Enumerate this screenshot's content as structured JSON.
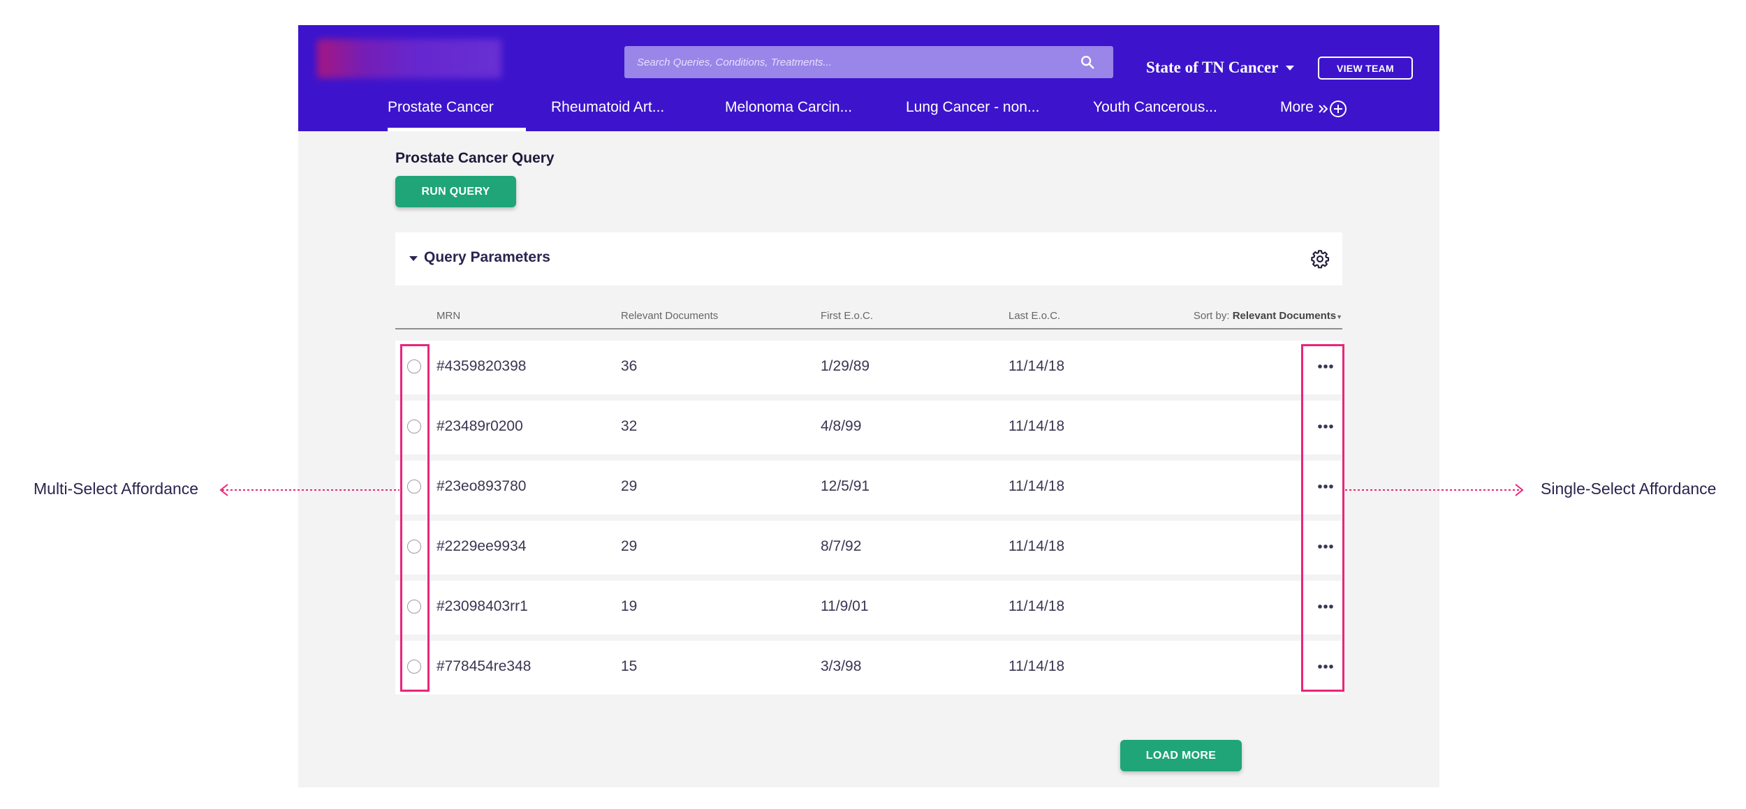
{
  "search": {
    "placeholder": "Search Queries, Conditions, Treatments..."
  },
  "header": {
    "team_name": "State of TN Cancer",
    "view_team_label": "VIEW TEAM"
  },
  "tabs": [
    {
      "label": "Prostate Cancer",
      "active": true
    },
    {
      "label": "Rheumatoid Art..."
    },
    {
      "label": "Melonoma Carcin..."
    },
    {
      "label": "Lung Cancer - non..."
    },
    {
      "label": "Youth Cancerous..."
    },
    {
      "label": "More"
    }
  ],
  "query": {
    "title": "Prostate Cancer Query",
    "run_label": "RUN QUERY"
  },
  "params": {
    "title": "Query Parameters"
  },
  "table": {
    "headers": {
      "mrn": "MRN",
      "docs": "Relevant Documents",
      "first": "First E.o.C.",
      "last": "Last E.o.C."
    },
    "sort_prefix": "Sort by:",
    "sort_value": "Relevant Documents",
    "rows": [
      {
        "mrn": "#4359820398",
        "docs": "36",
        "first": "1/29/89",
        "last": "11/14/18"
      },
      {
        "mrn": "#23489r0200",
        "docs": "32",
        "first": "4/8/99",
        "last": "11/14/18"
      },
      {
        "mrn": "#23eo893780",
        "docs": "29",
        "first": "12/5/91",
        "last": "11/14/18"
      },
      {
        "mrn": "#2229ee9934",
        "docs": "29",
        "first": "8/7/92",
        "last": "11/14/18"
      },
      {
        "mrn": "#23098403rr1",
        "docs": "19",
        "first": "11/9/01",
        "last": "11/14/18"
      },
      {
        "mrn": "#778454re348",
        "docs": "15",
        "first": "3/3/98",
        "last": "11/14/18"
      }
    ]
  },
  "load_more_label": "LOAD MORE",
  "annotations": {
    "left": "Multi-Select Affordance",
    "right": "Single-Select Affordance"
  },
  "colors": {
    "header_bg": "#3d14cc",
    "accent_green": "#1fa577",
    "annotation_pink": "#e8267a"
  },
  "icons": {
    "search": "search-icon",
    "dropdown": "caret-down-icon",
    "more": "double-chevron-right-icon",
    "add": "plus-circle-icon",
    "collapse": "caret-down-icon",
    "settings": "gear-icon",
    "row_menu": "more-horizontal-icon"
  }
}
